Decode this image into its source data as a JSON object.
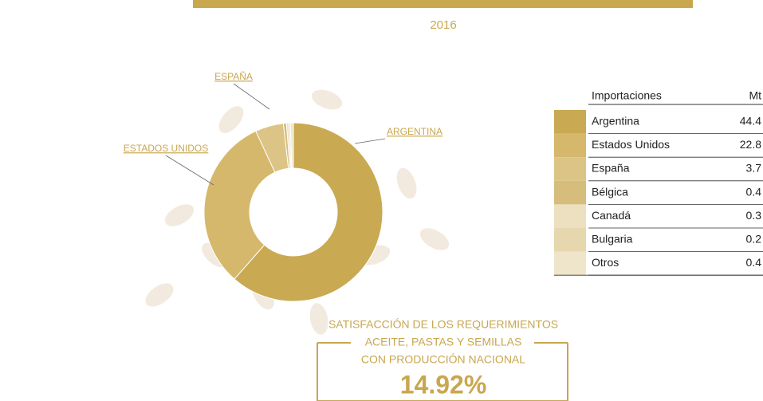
{
  "chart_data": {
    "type": "pie",
    "year": "2016",
    "slice_labels": [
      "ARGENTINA",
      "ESTADOS UNIDOS",
      "ESPAÑA",
      null,
      null,
      null,
      null
    ],
    "header": [
      "Importaciones",
      "Mt"
    ],
    "categories": [
      "Argentina",
      "Estados Unidos",
      "España",
      "Bélgica",
      "Canadá",
      "Bulgaria",
      "Otros"
    ],
    "values": [
      44.4,
      22.8,
      3.7,
      0.4,
      0.3,
      0.2,
      0.4
    ],
    "colors": [
      "#c9a952",
      "#d5b86c",
      "#dcc487",
      "#d6bd7c",
      "#ede0c0",
      "#e7d7ae",
      "#efe5cb"
    ]
  },
  "footer": {
    "lines": [
      "SATISFACCIÓN DE LOS REQUERIMIENTOS",
      "ACEITE, PASTAS Y SEMILLAS",
      "CON PRODUCCIÓN NACIONAL"
    ],
    "value": "14.92%"
  }
}
